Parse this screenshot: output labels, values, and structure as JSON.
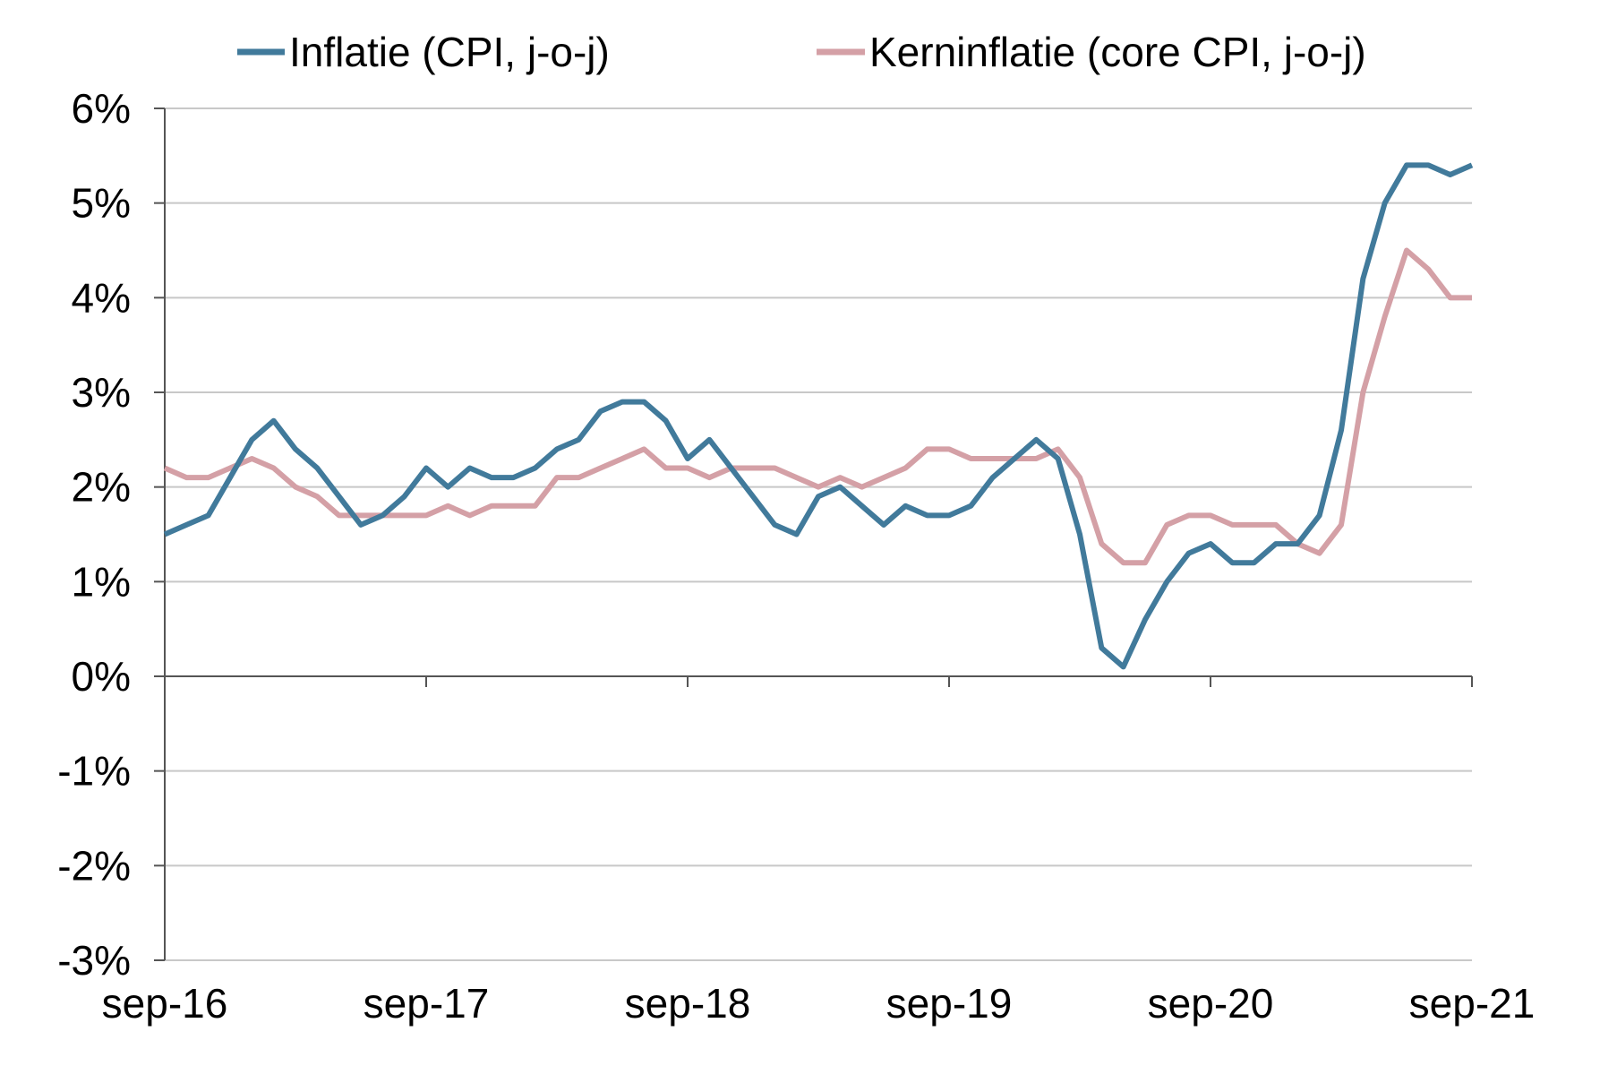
{
  "chart_data": {
    "type": "line",
    "title": "",
    "xlabel": "",
    "ylabel": "",
    "ylim": [
      -3,
      6
    ],
    "y_ticks": [
      "6%",
      "5%",
      "4%",
      "3%",
      "2%",
      "1%",
      "0%",
      "-1%",
      "-2%",
      "-3%"
    ],
    "x_ticks": [
      "sep-16",
      "sep-17",
      "sep-18",
      "sep-19",
      "sep-20",
      "sep-21"
    ],
    "grid": "horizontal",
    "legend_position": "top",
    "x": [
      "sep-16",
      "okt-16",
      "nov-16",
      "dec-16",
      "jan-17",
      "feb-17",
      "mrt-17",
      "apr-17",
      "mei-17",
      "jun-17",
      "jul-17",
      "aug-17",
      "sep-17",
      "okt-17",
      "nov-17",
      "dec-17",
      "jan-18",
      "feb-18",
      "mrt-18",
      "apr-18",
      "mei-18",
      "jun-18",
      "jul-18",
      "aug-18",
      "sep-18",
      "okt-18",
      "nov-18",
      "dec-18",
      "jan-19",
      "feb-19",
      "mrt-19",
      "apr-19",
      "mei-19",
      "jun-19",
      "jul-19",
      "aug-19",
      "sep-19",
      "okt-19",
      "nov-19",
      "dec-19",
      "jan-20",
      "feb-20",
      "mrt-20",
      "apr-20",
      "mei-20",
      "jun-20",
      "jul-20",
      "aug-20",
      "sep-20",
      "okt-20",
      "nov-20",
      "dec-20",
      "jan-21",
      "feb-21",
      "mrt-21",
      "apr-21",
      "mei-21",
      "jun-21",
      "jul-21",
      "aug-21",
      "sep-21"
    ],
    "series": [
      {
        "name": "Inflatie (CPI, j-o-j)",
        "color": "#417a9b",
        "values": [
          1.5,
          1.6,
          1.7,
          2.1,
          2.5,
          2.7,
          2.4,
          2.2,
          1.9,
          1.6,
          1.7,
          1.9,
          2.2,
          2.0,
          2.2,
          2.1,
          2.1,
          2.2,
          2.4,
          2.5,
          2.8,
          2.9,
          2.9,
          2.7,
          2.3,
          2.5,
          2.2,
          1.9,
          1.6,
          1.5,
          1.9,
          2.0,
          1.8,
          1.6,
          1.8,
          1.7,
          1.7,
          1.8,
          2.1,
          2.3,
          2.5,
          2.3,
          1.5,
          0.3,
          0.1,
          0.6,
          1.0,
          1.3,
          1.4,
          1.2,
          1.2,
          1.4,
          1.4,
          1.7,
          2.6,
          4.2,
          5.0,
          5.4,
          5.4,
          5.3,
          5.4
        ]
      },
      {
        "name": "Kerninflatie (core CPI, j-o-j)",
        "color": "#d4a0a6",
        "values": [
          2.2,
          2.1,
          2.1,
          2.2,
          2.3,
          2.2,
          2.0,
          1.9,
          1.7,
          1.7,
          1.7,
          1.7,
          1.7,
          1.8,
          1.7,
          1.8,
          1.8,
          1.8,
          2.1,
          2.1,
          2.2,
          2.3,
          2.4,
          2.2,
          2.2,
          2.1,
          2.2,
          2.2,
          2.2,
          2.1,
          2.0,
          2.1,
          2.0,
          2.1,
          2.2,
          2.4,
          2.4,
          2.3,
          2.3,
          2.3,
          2.3,
          2.4,
          2.1,
          1.4,
          1.2,
          1.2,
          1.6,
          1.7,
          1.7,
          1.6,
          1.6,
          1.6,
          1.4,
          1.3,
          1.6,
          3.0,
          3.8,
          4.5,
          4.3,
          4.0,
          4.0
        ]
      }
    ]
  }
}
